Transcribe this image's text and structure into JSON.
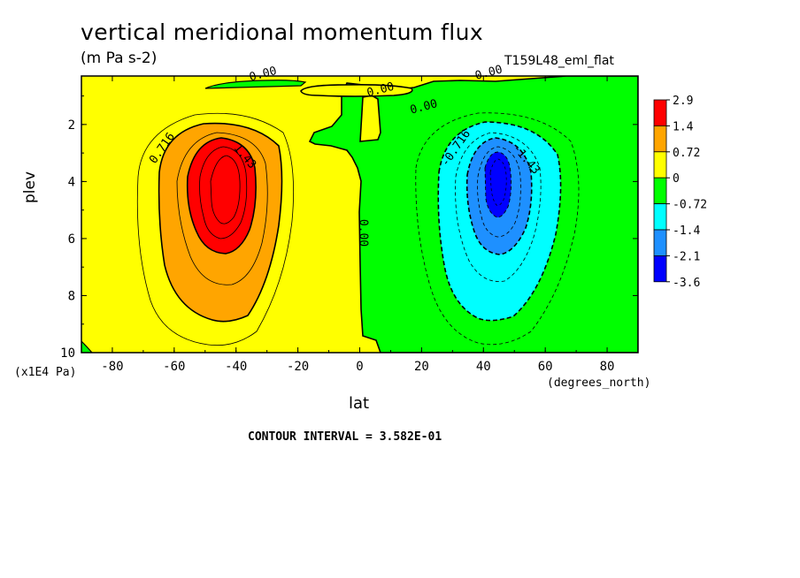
{
  "chart_data": {
    "type": "contour",
    "title": "vertical meridional momentum flux",
    "units": "(m Pa s-2)",
    "dataset": "T159L48_eml_flat",
    "xlabel": "lat",
    "ylabel": "plev",
    "x_units": "(degrees_north)",
    "y_units": "(x1E4 Pa)",
    "xlim": [
      -90,
      90
    ],
    "ylim": [
      10,
      0.3
    ],
    "x_ticks": [
      "-80",
      "-60",
      "-40",
      "-20",
      "0",
      "20",
      "40",
      "60",
      "80"
    ],
    "x_tick_values": [
      -80,
      -60,
      -40,
      -20,
      0,
      20,
      40,
      60,
      80
    ],
    "y_ticks": [
      "2",
      "4",
      "6",
      "8",
      "10"
    ],
    "y_tick_values": [
      2,
      4,
      6,
      8,
      10
    ],
    "contour_interval_text": "CONTOUR INTERVAL = 3.582E-01",
    "contour_labels": [
      {
        "text": "0.716",
        "x": -63,
        "y": 2.9
      },
      {
        "text": "1.43",
        "x": -38,
        "y": 3.2
      },
      {
        "text": "-0.716",
        "x": 32,
        "y": 2.9
      },
      {
        "text": "-1.43",
        "x": 53,
        "y": 3.3
      },
      {
        "text": "0.00",
        "x": -31,
        "y": 0.35
      },
      {
        "text": "0.00",
        "x": 7,
        "y": 0.9
      },
      {
        "text": "0.00",
        "x": 21,
        "y": 1.5
      },
      {
        "text": "0.00",
        "x": 42,
        "y": 0.3
      },
      {
        "text": "0.00",
        "x": 0,
        "y": 5.8
      }
    ],
    "levels": [
      -3.6,
      -2.1,
      -1.4,
      -0.72,
      0,
      0.72,
      1.4,
      2.9
    ],
    "legend": {
      "placement": "right",
      "labels": [
        "2.9",
        "1.4",
        "0.72",
        "0",
        "-0.72",
        "-1.4",
        "-2.1",
        "-3.6"
      ],
      "colors": [
        "#ff0000",
        "#ffa500",
        "#ffff00",
        "#00ff00",
        "#00ffff",
        "#1e90ff",
        "#0000ff"
      ]
    },
    "fields": [
      {
        "name": "southern-maximum",
        "center_lat": -45,
        "center_plev": 4.1,
        "peak": 2.9
      },
      {
        "name": "northern-minimum",
        "center_lat": 44,
        "center_plev": 3.9,
        "peak": -3.6
      }
    ]
  }
}
